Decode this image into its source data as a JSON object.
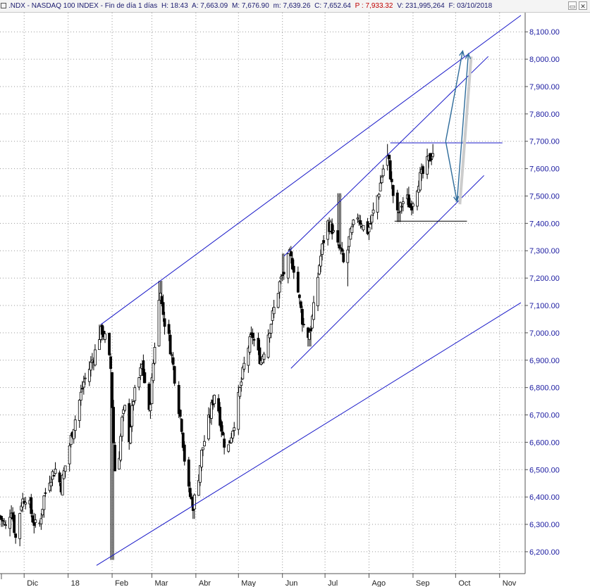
{
  "header": {
    "symbol": ".NDX - NASDAQ 100 INDEX - Fin de día 1 días",
    "hour": "H: 18:43",
    "open": "A: 7,663.09",
    "high": "M: 7,676.90",
    "low": "m: 7,639.26",
    "close": "C: 7,652.64",
    "price": "P : 7,933.32",
    "volume": "V: 231,995,264",
    "date": "F: 03/10/2018",
    "minimize_label": "▭",
    "close_label": "✕"
  },
  "chart_data": {
    "type": "candlestick",
    "title": ".NDX - NASDAQ 100 INDEX",
    "ylim": [
      6120,
      8170
    ],
    "y_ticks": [
      6200,
      6300,
      6400,
      6500,
      6600,
      6700,
      6800,
      6900,
      7000,
      7100,
      7200,
      7300,
      7400,
      7500,
      7600,
      7700,
      7800,
      7900,
      8000,
      8100
    ],
    "y_tick_labels": [
      "6,200.00",
      "6,300.00",
      "6,400.00",
      "6,500.00",
      "6,600.00",
      "6,700.00",
      "6,800.00",
      "6,900.00",
      "7,000.00",
      "7,100.00",
      "7,200.00",
      "7,300.00",
      "7,400.00",
      "7,500.00",
      "7,600.00",
      "7,700.00",
      "7,800.00",
      "7,900.00",
      "8,000.00",
      "8,100.00"
    ],
    "x_labels": [
      {
        "label": "Dic",
        "day": 17
      },
      {
        "label": "18",
        "day": 48
      },
      {
        "label": "Feb",
        "day": 79
      },
      {
        "label": "Mar",
        "day": 107
      },
      {
        "label": "Abr",
        "day": 138
      },
      {
        "label": "May",
        "day": 168
      },
      {
        "label": "Jun",
        "day": 199
      },
      {
        "label": "Jul",
        "day": 229
      },
      {
        "label": "Ago",
        "day": 260
      },
      {
        "label": "Sep",
        "day": 291
      },
      {
        "label": "Oct",
        "day": 321
      },
      {
        "label": "Nov",
        "day": 352
      }
    ],
    "x_range_days": [
      0,
      370
    ],
    "price_path": [
      [
        0,
        6330
      ],
      [
        4,
        6290
      ],
      [
        8,
        6360
      ],
      [
        11,
        6250
      ],
      [
        15,
        6380
      ],
      [
        19,
        6410
      ],
      [
        23,
        6320
      ],
      [
        27,
        6270
      ],
      [
        31,
        6400
      ],
      [
        35,
        6470
      ],
      [
        39,
        6500
      ],
      [
        43,
        6440
      ],
      [
        47,
        6540
      ],
      [
        51,
        6640
      ],
      [
        55,
        6730
      ],
      [
        59,
        6820
      ],
      [
        63,
        6870
      ],
      [
        67,
        6930
      ],
      [
        70,
        6990
      ],
      [
        72,
        7010
      ],
      [
        74,
        6980
      ],
      [
        76,
        6930
      ],
      [
        78,
        6870
      ],
      [
        80,
        6600
      ],
      [
        82,
        6400
      ],
      [
        84,
        6560
      ],
      [
        86,
        6680
      ],
      [
        88,
        6720
      ],
      [
        91,
        6620
      ],
      [
        94,
        6760
      ],
      [
        97,
        6810
      ],
      [
        100,
        6880
      ],
      [
        103,
        6790
      ],
      [
        105,
        6700
      ],
      [
        107,
        6820
      ],
      [
        109,
        6960
      ],
      [
        111,
        7060
      ],
      [
        113,
        7170
      ],
      [
        114,
        7100
      ],
      [
        116,
        7040
      ],
      [
        119,
        6980
      ],
      [
        122,
        6880
      ],
      [
        125,
        6760
      ],
      [
        128,
        6660
      ],
      [
        130,
        6540
      ],
      [
        133,
        6420
      ],
      [
        136,
        6370
      ],
      [
        139,
        6440
      ],
      [
        142,
        6560
      ],
      [
        145,
        6630
      ],
      [
        148,
        6700
      ],
      [
        151,
        6780
      ],
      [
        154,
        6720
      ],
      [
        157,
        6620
      ],
      [
        160,
        6560
      ],
      [
        163,
        6630
      ],
      [
        166,
        6700
      ],
      [
        169,
        6790
      ],
      [
        172,
        6880
      ],
      [
        175,
        6950
      ],
      [
        178,
        6990
      ],
      [
        181,
        6930
      ],
      [
        184,
        6900
      ],
      [
        187,
        6960
      ],
      [
        191,
        7040
      ],
      [
        194,
        7110
      ],
      [
        197,
        7180
      ],
      [
        200,
        7220
      ],
      [
        204,
        7280
      ],
      [
        207,
        7240
      ],
      [
        210,
        7150
      ],
      [
        213,
        7050
      ],
      [
        216,
        6980
      ],
      [
        219,
        7020
      ],
      [
        222,
        7120
      ],
      [
        225,
        7250
      ],
      [
        228,
        7340
      ],
      [
        231,
        7400
      ],
      [
        234,
        7380
      ],
      [
        237,
        7320
      ],
      [
        240,
        7300
      ],
      [
        243,
        7230
      ],
      [
        246,
        7340
      ],
      [
        249,
        7390
      ],
      [
        252,
        7430
      ],
      [
        255,
        7400
      ],
      [
        258,
        7360
      ],
      [
        261,
        7400
      ],
      [
        264,
        7460
      ],
      [
        267,
        7520
      ],
      [
        270,
        7600
      ],
      [
        272,
        7660
      ],
      [
        274,
        7620
      ],
      [
        276,
        7540
      ],
      [
        278,
        7470
      ],
      [
        280,
        7430
      ],
      [
        283,
        7470
      ],
      [
        286,
        7500
      ],
      [
        289,
        7460
      ],
      [
        292,
        7500
      ],
      [
        295,
        7560
      ],
      [
        298,
        7580
      ],
      [
        301,
        7620
      ],
      [
        304,
        7650
      ],
      [
        306,
        7675
      ]
    ],
    "lows": [
      [
        79,
        6170
      ],
      [
        137,
        6320
      ],
      [
        218,
        6950
      ],
      [
        244,
        7170
      ],
      [
        281,
        7405
      ]
    ],
    "highs": [
      [
        71,
        7030
      ],
      [
        113,
        7190
      ],
      [
        200,
        7290
      ],
      [
        239,
        7510
      ],
      [
        272,
        7690
      ],
      [
        306,
        7690
      ]
    ],
    "trendlines": [
      {
        "name": "outer-channel-upper",
        "from": [
          71,
          7030
        ],
        "to": [
          367,
          8160
        ]
      },
      {
        "name": "outer-channel-lower",
        "from": [
          68,
          6150
        ],
        "to": [
          367,
          7110
        ]
      },
      {
        "name": "inner-channel-upper",
        "from": [
          200,
          7280
        ],
        "to": [
          344,
          8010
        ]
      },
      {
        "name": "inner-channel-lower",
        "from": [
          205,
          6870
        ],
        "to": [
          341,
          7575
        ]
      },
      {
        "name": "resistance",
        "from": [
          275,
          7694
        ],
        "to": [
          354,
          7694
        ]
      },
      {
        "name": "support",
        "from": [
          278,
          7408
        ],
        "to": [
          329,
          7408
        ]
      }
    ],
    "projection": [
      [
        314,
        7700
      ],
      [
        322,
        7480
      ],
      [
        330,
        8020
      ]
    ],
    "projection_color": "#2d6b9a"
  },
  "colors": {
    "line": "#1818c8",
    "candle": "#000000",
    "axis_text": "#1a1aa0"
  }
}
